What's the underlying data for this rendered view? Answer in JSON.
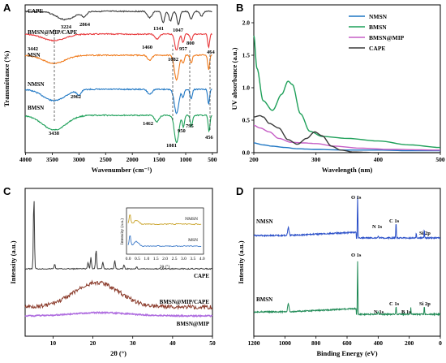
{
  "chart_data": [
    {
      "panel": "A",
      "type": "line",
      "xlabel": "Wavenumber (cm⁻¹)",
      "ylabel": "Transmittance (%)",
      "xlim": [
        4000,
        400
      ],
      "xticks": [
        "4000",
        "3500",
        "3000",
        "2500",
        "2000",
        "1500",
        "1000",
        "500"
      ],
      "series": [
        {
          "name": "CAPE",
          "color": "#3a3a3a"
        },
        {
          "name": "BMSN@MIP/CAPE",
          "color": "#e8383b"
        },
        {
          "name": "MSN",
          "color": "#f07c1e"
        },
        {
          "name": "NMSN",
          "color": "#1f77c4"
        },
        {
          "name": "BMSN",
          "color": "#1fa05a"
        }
      ],
      "annotations": [
        "3224",
        "2864",
        "1341",
        "1047",
        "3442",
        "1460",
        "800",
        "957",
        "1082",
        "464",
        "2962",
        "3438",
        "1462",
        "795",
        "950",
        "1081",
        "456"
      ]
    },
    {
      "panel": "B",
      "type": "line",
      "xlabel": "Wavelength (nm)",
      "ylabel": "UV absorbance (a.u.)",
      "xlim": [
        200,
        500
      ],
      "ylim": [
        0.0,
        2.0
      ],
      "xticks": [
        "200",
        "300",
        "400",
        "500"
      ],
      "yticks": [
        "0.0",
        "0.5",
        "1.0",
        "1.5",
        "2.0"
      ],
      "legend": "top-right",
      "series": [
        {
          "name": "NMSN",
          "color": "#1f77c4",
          "x": [
            200,
            215,
            230,
            250,
            270,
            300,
            350,
            400,
            450,
            500
          ],
          "y": [
            0.15,
            0.12,
            0.1,
            0.08,
            0.06,
            0.05,
            0.04,
            0.04,
            0.03,
            0.03
          ]
        },
        {
          "name": "BMSN",
          "color": "#1fa05a",
          "x": [
            200,
            205,
            215,
            230,
            245,
            255,
            262,
            275,
            290,
            310,
            350,
            400,
            450,
            500
          ],
          "y": [
            1.8,
            1.3,
            0.8,
            0.65,
            0.9,
            1.1,
            1.05,
            0.6,
            0.33,
            0.25,
            0.22,
            0.18,
            0.12,
            0.08
          ]
        },
        {
          "name": "BMSN@MIP",
          "color": "#c65fc6",
          "x": [
            200,
            210,
            225,
            240,
            260,
            280,
            300,
            330,
            370,
            420,
            500
          ],
          "y": [
            0.42,
            0.38,
            0.32,
            0.22,
            0.16,
            0.15,
            0.14,
            0.1,
            0.07,
            0.05,
            0.04
          ]
        },
        {
          "name": "CAPE",
          "color": "#3a3a3a",
          "x": [
            200,
            210,
            215,
            225,
            240,
            255,
            270,
            285,
            298,
            310,
            325,
            340,
            360,
            400,
            500
          ],
          "y": [
            0.55,
            0.57,
            0.55,
            0.45,
            0.38,
            0.2,
            0.13,
            0.22,
            0.32,
            0.26,
            0.1,
            0.04,
            0.01,
            0.0,
            0.0
          ]
        }
      ]
    },
    {
      "panel": "C",
      "type": "line",
      "xlabel": "2θ (°)",
      "ylabel": "Intensity (a.u.)",
      "xlim": [
        3,
        50
      ],
      "xticks": [
        "10",
        "20",
        "30",
        "40",
        "50"
      ],
      "series": [
        {
          "name": "CAPE",
          "color": "#3a3a3a"
        },
        {
          "name": "BMSN@MIP/CAPE",
          "color": "#8a3a2a"
        },
        {
          "name": "BMSN@MIP",
          "color": "#b06fe0"
        }
      ],
      "inset": {
        "xlabel": "2θ (°)",
        "ylabel": "Intensity (a.u.)",
        "xticks": [
          "0.0",
          "0.5",
          "1.0",
          "1.5",
          "2.0",
          "2.5",
          "3.0",
          "3.5",
          "4.0"
        ],
        "series": [
          {
            "name": "NMSN",
            "color": "#c9a227"
          },
          {
            "name": "MSN",
            "color": "#3a78c8"
          }
        ]
      }
    },
    {
      "panel": "D",
      "type": "line",
      "xlabel": "Binding Energy (eV)",
      "ylabel": "Intensity (a.u.)",
      "xlim": [
        1200,
        0
      ],
      "xticks": [
        "1200",
        "1000",
        "800",
        "600",
        "400",
        "200",
        "0"
      ],
      "series": [
        {
          "name": "NMSN",
          "color": "#2a4fc8",
          "peaks": [
            "O 1s",
            "C 1s",
            "N 1s",
            "Si 2p"
          ]
        },
        {
          "name": "BMSN",
          "color": "#1f8a55",
          "peaks": [
            "O 1s",
            "C 1s",
            "N 1s",
            "B 1s",
            "Si 2p"
          ]
        }
      ]
    }
  ]
}
